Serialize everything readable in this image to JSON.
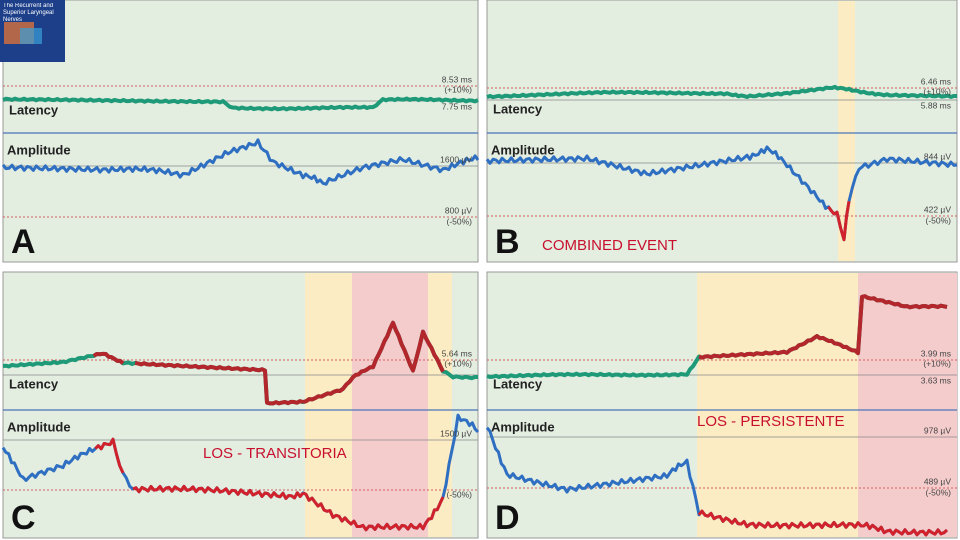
{
  "cover": {
    "title": "The Recurrent and Superior Laryngeal Nerves"
  },
  "panels": [
    {
      "label": "A",
      "latency_label": "Latency",
      "amplitude_label": "Amplitude",
      "latency_upper": "8.53 ms",
      "latency_upper_note": "(+10%)",
      "latency_baseline": "7.75 ms",
      "amplitude_baseline": "1600 µV",
      "amplitude_lower": "800 µV",
      "amplitude_lower_note": "(-50%)"
    },
    {
      "label": "B",
      "latency_label": "Latency",
      "amplitude_label": "Amplitude",
      "latency_upper": "6.46 ms",
      "latency_upper_note": "(+10%)",
      "latency_baseline": "5.88 ms",
      "amplitude_baseline": "844 µV",
      "amplitude_lower": "422 µV",
      "amplitude_lower_note": "(-50%)",
      "annotation": "COMBINED EVENT"
    },
    {
      "label": "C",
      "latency_label": "Latency",
      "amplitude_label": "Amplitude",
      "latency_upper": "5.64 ms",
      "latency_upper_note": "(+10%)",
      "amplitude_baseline": "1500 µV",
      "amplitude_lower_note": "(-50%)",
      "annotation": "LOS - TRANSITORIA"
    },
    {
      "label": "D",
      "latency_label": "Latency",
      "amplitude_label": "Amplitude",
      "latency_upper": "3.99 ms",
      "latency_upper_note": "(+10%)",
      "latency_baseline": "3.63 ms",
      "amplitude_baseline": "978 µV",
      "amplitude_lower": "489 µV",
      "amplitude_lower_note": "(-50%)",
      "annotation": "LOS - PERSISTENTE"
    }
  ]
}
